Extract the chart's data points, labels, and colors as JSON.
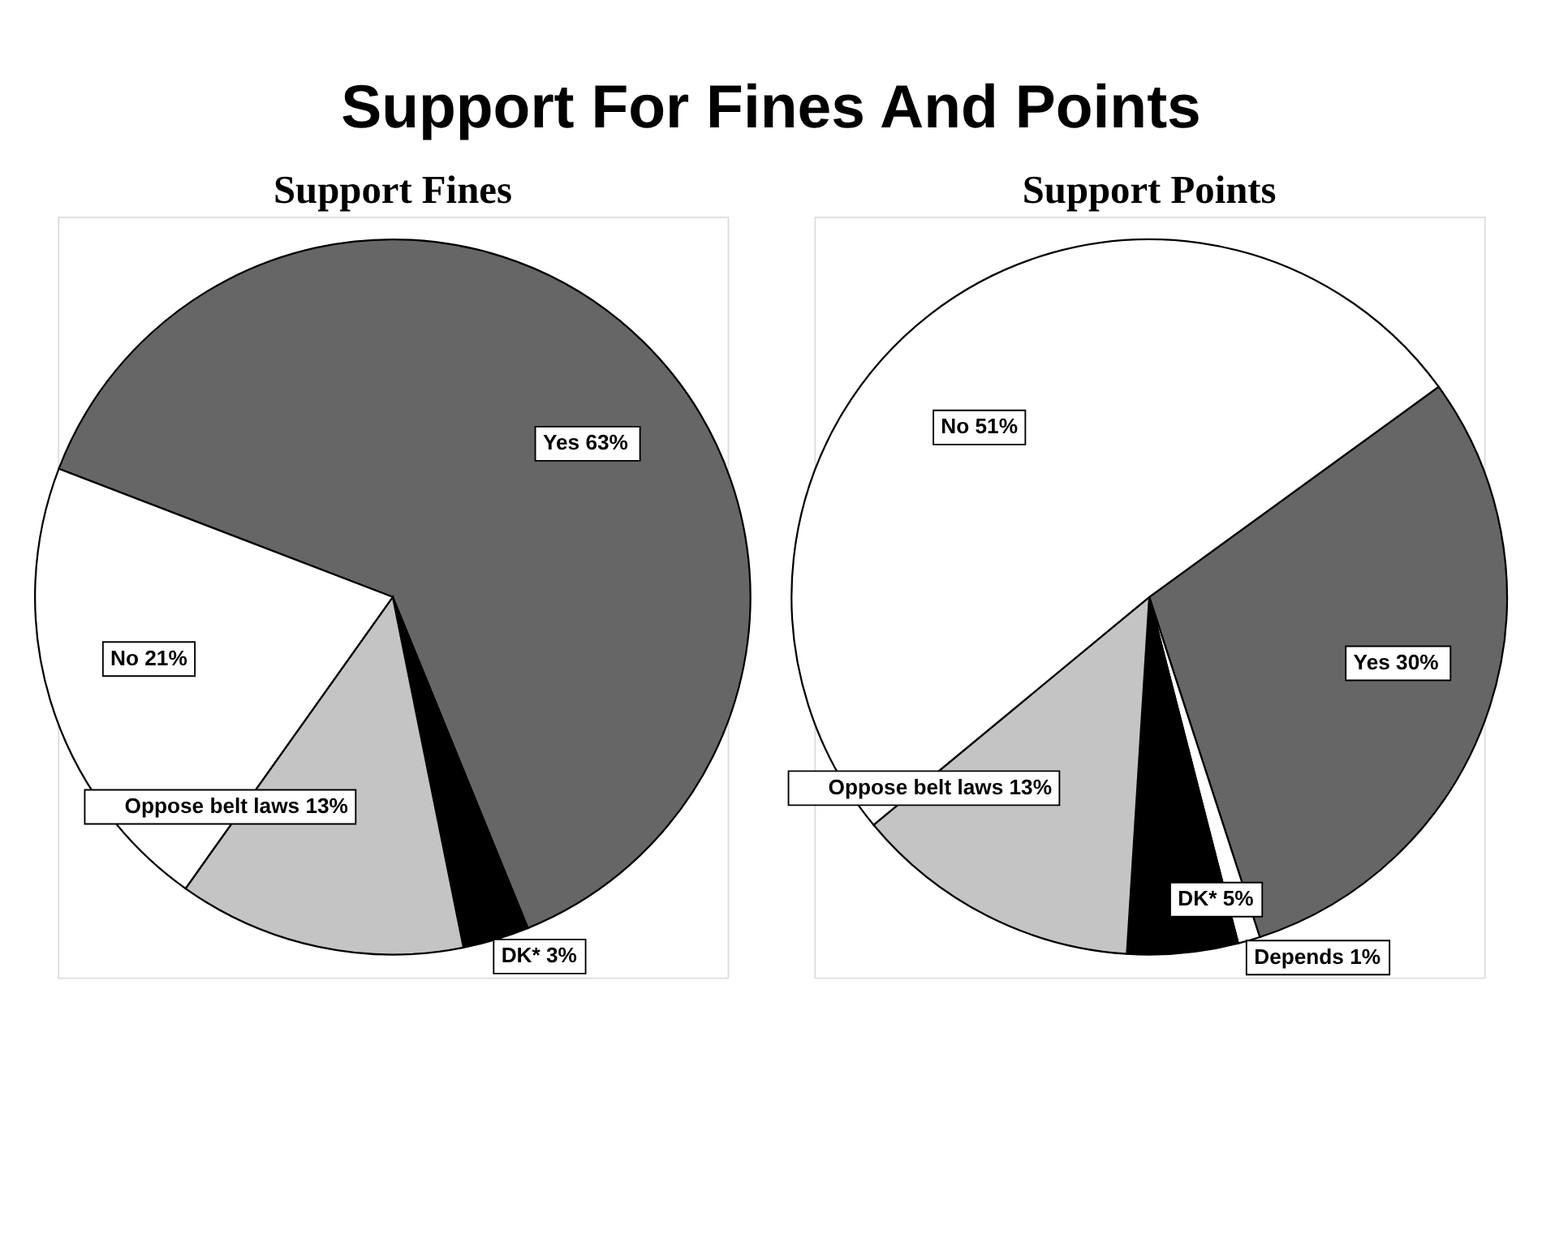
{
  "chart_data": [
    {
      "type": "pie",
      "title": "Support For Fines And Points",
      "subtitle": "Support Fines",
      "categories": [
        "Yes",
        "DK*",
        "Oppose belt laws",
        "No"
      ],
      "values": [
        63,
        3,
        13,
        21
      ],
      "colors": [
        "#666666",
        "#000000",
        "#c4c4c4",
        "#ffffff"
      ],
      "value_labels": [
        "63%",
        "3%",
        "13%",
        "21%"
      ],
      "legend": false
    },
    {
      "type": "pie",
      "subtitle": "Support Points",
      "categories": [
        "Yes",
        "Depends",
        "DK*",
        "Oppose belt laws",
        "No"
      ],
      "values": [
        30,
        1,
        5,
        13,
        51
      ],
      "colors": [
        "#666666",
        "#ffffff",
        "#000000",
        "#c4c4c4",
        "#ffffff"
      ],
      "value_labels": [
        "30%",
        "1%",
        "5%",
        "13%",
        "51%"
      ],
      "legend": false
    }
  ]
}
